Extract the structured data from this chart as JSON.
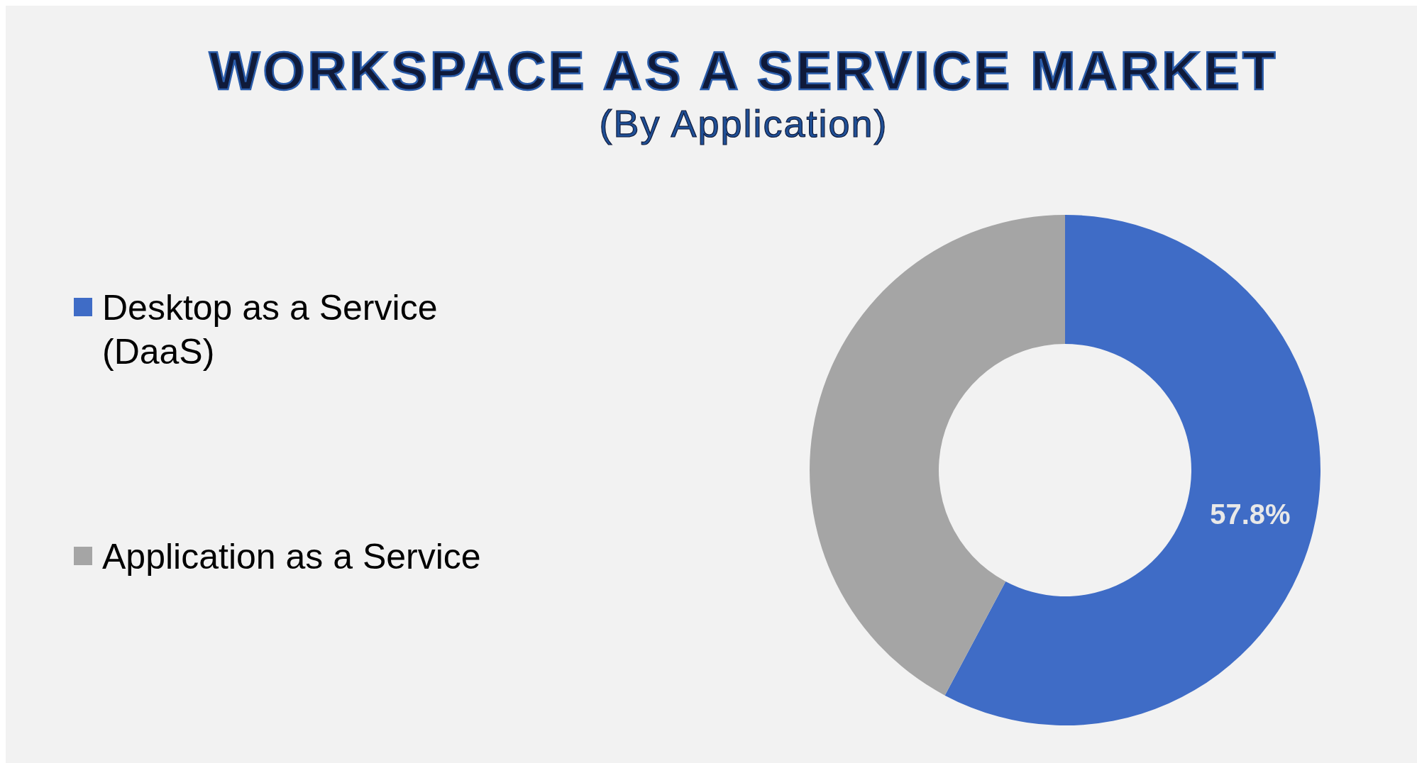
{
  "chart_data": {
    "type": "donut",
    "title": "WORKSPACE AS A SERVICE MARKET",
    "subtitle": "(By Application)",
    "categories": [
      "Desktop as a Service (DaaS)",
      "Application as a Service"
    ],
    "values": [
      57.8,
      42.2
    ],
    "colors": [
      "#3f6cc6",
      "#a5a5a5"
    ],
    "value_labels": [
      "57.8%",
      null
    ],
    "legend": "left"
  }
}
